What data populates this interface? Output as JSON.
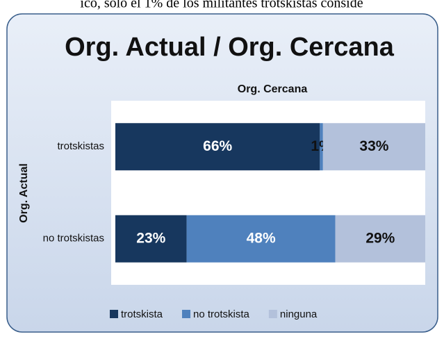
{
  "page_text": "ico, solo el 1% de los militantes trotskistas conside",
  "chart_data": {
    "type": "stacked-barh",
    "title": "Org. Actual / Org. Cercana",
    "subtitle": "Org. Cercana",
    "y_label": "Org. Actual",
    "categories": [
      "trotskistas",
      "no trotskistas"
    ],
    "series": [
      {
        "name": "trotskista",
        "color": "#17375e",
        "values": [
          66,
          23
        ],
        "value_labels": [
          "66%",
          "23%"
        ]
      },
      {
        "name": "no trotskista",
        "color": "#4f81bd",
        "values": [
          1,
          48
        ],
        "value_labels": [
          "1%",
          "48%"
        ]
      },
      {
        "name": "ninguna",
        "color": "#b3c1db",
        "values": [
          33,
          29
        ],
        "value_labels": [
          "33%",
          "29%"
        ]
      }
    ],
    "xlim": [
      0,
      100
    ],
    "legend": "bottom"
  }
}
